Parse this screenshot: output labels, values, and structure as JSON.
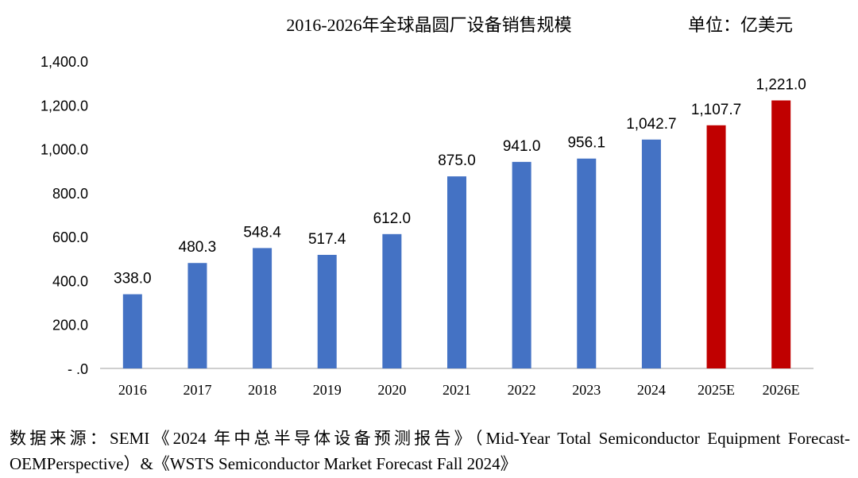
{
  "chart_data": {
    "type": "bar",
    "title": "2016-2026年全球晶圆厂设备销售规模",
    "unit_label": "单位：亿美元",
    "categories": [
      "2016",
      "2017",
      "2018",
      "2019",
      "2020",
      "2021",
      "2022",
      "2023",
      "2024",
      "2025E",
      "2026E"
    ],
    "values": [
      338.0,
      480.3,
      548.4,
      517.4,
      612.0,
      875.0,
      941.0,
      956.1,
      1042.7,
      1107.7,
      1221.0
    ],
    "data_labels": [
      "338.0",
      "480.3",
      "548.4",
      "517.4",
      "612.0",
      "875.0",
      "941.0",
      "956.1",
      "1,042.7",
      "1,107.7",
      "1,221.0"
    ],
    "estimated": [
      false,
      false,
      false,
      false,
      false,
      false,
      false,
      false,
      false,
      true,
      true
    ],
    "ylim": [
      0,
      1400
    ],
    "yticks": [
      0,
      200,
      400,
      600,
      800,
      1000,
      1200,
      1400
    ],
    "ytick_labels": [
      "- .0",
      "200.0",
      "400.0",
      "600.0",
      "800.0",
      "1,000.0",
      "1,200.0",
      "1,400.0"
    ],
    "xlabel": "",
    "ylabel": "",
    "grid": false,
    "colors": {
      "actual": "#4472C4",
      "estimate": "#C00000",
      "axis": "#BFBFBF"
    }
  },
  "source_note": "数据来源：SEMI《2024 年中总半导体设备预测报告》（Mid-Year Total Semiconductor Equipment Forecast-OEMPerspective）&《WSTS Semiconductor Market Forecast Fall 2024》"
}
